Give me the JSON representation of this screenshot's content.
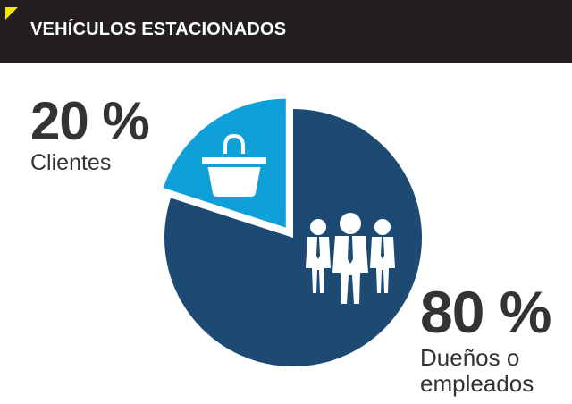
{
  "header": {
    "title": "VEHÍCULOS ESTACIONADOS"
  },
  "colors": {
    "dark_blue": "#1c4a72",
    "light_blue": "#0fa0d8",
    "header_bg": "#231f20",
    "accent_yellow": "#f5e800"
  },
  "chart_data": {
    "type": "pie",
    "slices": [
      {
        "value": 20,
        "label": "20 %",
        "name": "Clientes",
        "color": "#0fa0d8",
        "icon": "shopping-bag-icon"
      },
      {
        "value": 80,
        "label": "80 %",
        "name": "Dueños o empleados",
        "color": "#1c4a72",
        "icon": "people-icon"
      }
    ]
  }
}
